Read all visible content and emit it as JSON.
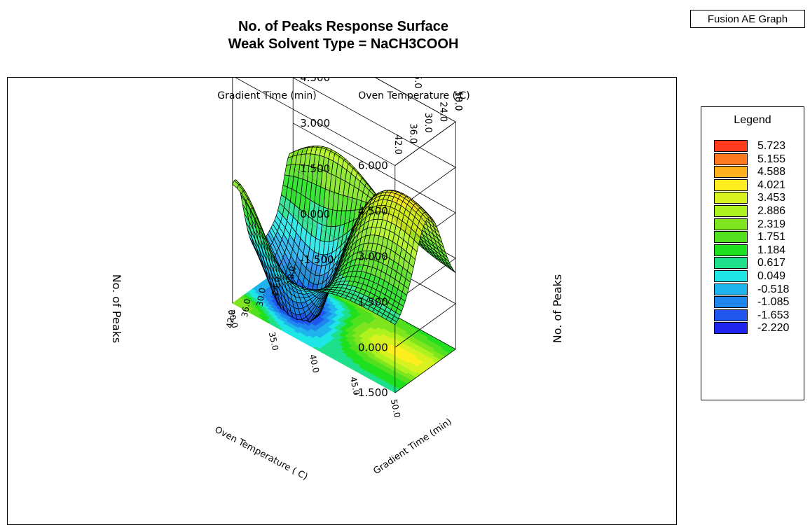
{
  "app_label": "Fusion AE Graph",
  "chart_data": {
    "type": "surface3d",
    "title": "No. of Peaks Response Surface",
    "subtitle": "Weak Solvent Type = NaCH3COOH",
    "z_label": "No. of Peaks",
    "x_axis": {
      "label": "Gradient Time (min)",
      "range": [
        18.0,
        42.0
      ],
      "ticks": [
        "18.0",
        "24.0",
        "30.0",
        "36.0",
        "42.0"
      ]
    },
    "y_axis": {
      "label": "Oven Temperature ( C)",
      "range": [
        30.0,
        50.0
      ],
      "ticks": [
        "50.0",
        "45.0",
        "40.0",
        "35.0",
        "30.0"
      ]
    },
    "z_axis": {
      "range": [
        -1.5,
        6.0
      ],
      "ticks": [
        "6.000",
        "4.500",
        "3.000",
        "1.500",
        "0.000",
        "-1.500"
      ]
    },
    "legend": {
      "title": "Legend",
      "placement": "right",
      "entries": [
        {
          "value": "5.723",
          "color": "#ff3b1f"
        },
        {
          "value": "5.155",
          "color": "#ff7a1f"
        },
        {
          "value": "4.588",
          "color": "#ffb01f"
        },
        {
          "value": "4.021",
          "color": "#ffee1f"
        },
        {
          "value": "3.453",
          "color": "#d7f21f"
        },
        {
          "value": "2.886",
          "color": "#aef21f"
        },
        {
          "value": "2.319",
          "color": "#7fe51f"
        },
        {
          "value": "1.751",
          "color": "#52e01f"
        },
        {
          "value": "1.184",
          "color": "#1fe01f"
        },
        {
          "value": "0.617",
          "color": "#1fe08a"
        },
        {
          "value": "0.049",
          "color": "#1fe6e6"
        },
        {
          "value": "-0.518",
          "color": "#1fb4ee"
        },
        {
          "value": "-1.085",
          "color": "#1f86ee"
        },
        {
          "value": "-1.653",
          "color": "#1f56ee"
        },
        {
          "value": "-2.220",
          "color": "#1f24ee"
        }
      ]
    },
    "grid": true
  }
}
